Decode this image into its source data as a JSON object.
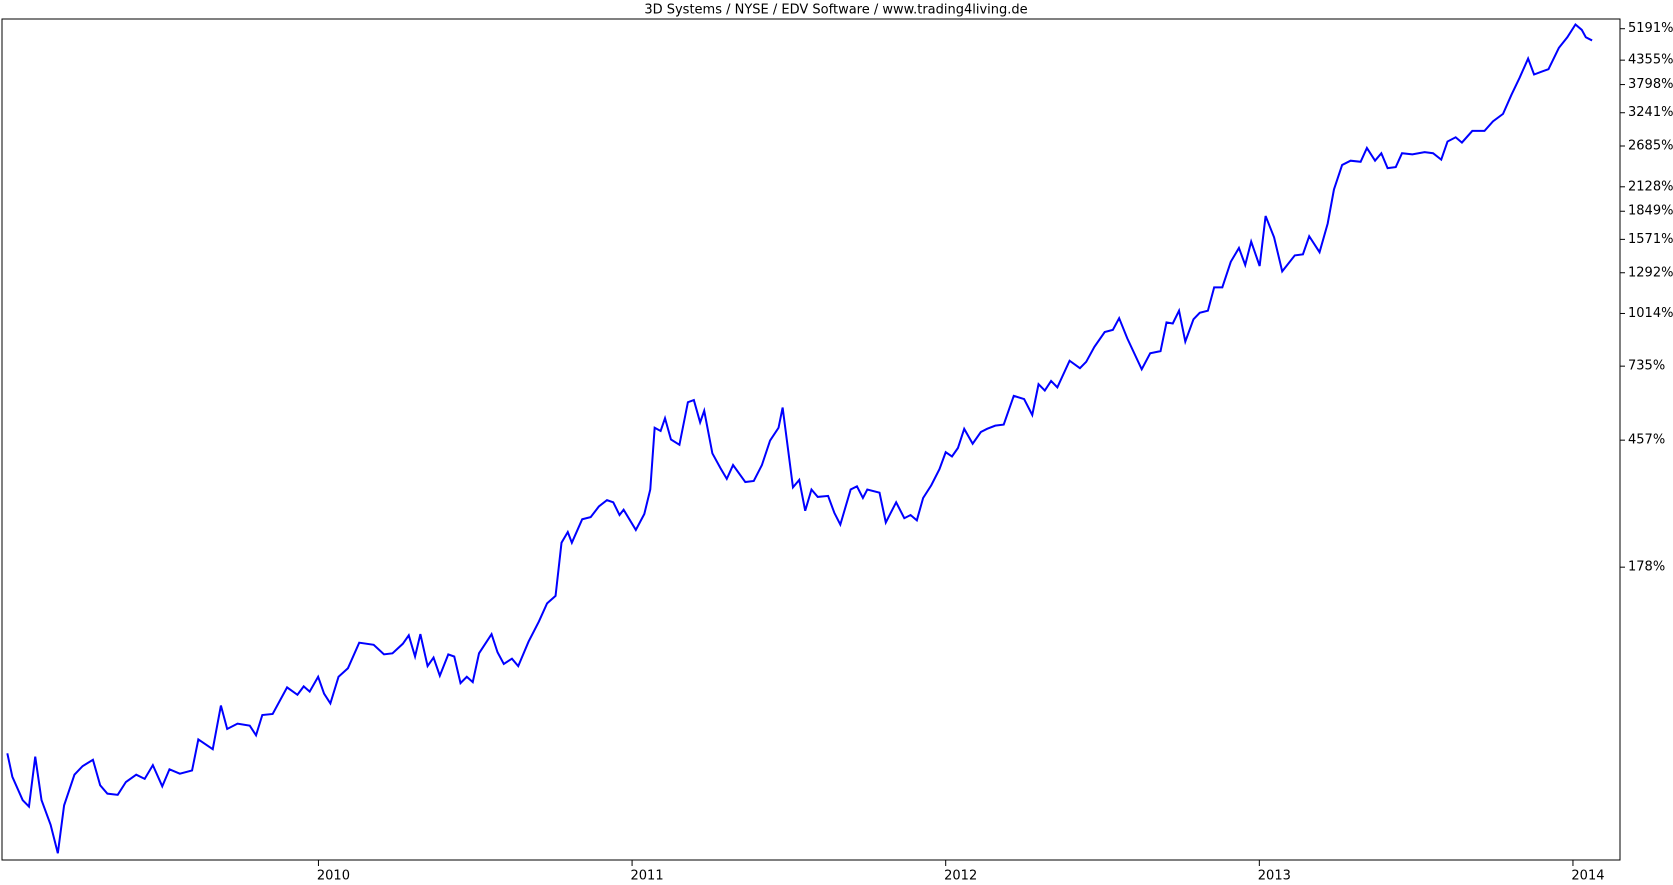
{
  "chart_data": {
    "type": "line",
    "title": "3D Systems / NYSE / EDV Software / www.trading4living.de",
    "color": "#0000ff",
    "yscale": "log",
    "x": [
      2009.008,
      2009.024,
      2009.057,
      2009.077,
      2009.097,
      2009.117,
      2009.146,
      2009.169,
      2009.189,
      2009.222,
      2009.248,
      2009.281,
      2009.304,
      2009.327,
      2009.36,
      2009.386,
      2009.419,
      2009.446,
      2009.472,
      2009.502,
      2009.525,
      2009.558,
      2009.597,
      2009.617,
      2009.663,
      2009.689,
      2009.709,
      2009.742,
      2009.781,
      2009.801,
      2009.821,
      2009.854,
      2009.9,
      2009.933,
      2009.953,
      2009.972,
      2009.999,
      2010.018,
      2010.038,
      2010.064,
      2010.094,
      2010.13,
      2010.176,
      2010.209,
      2010.236,
      2010.269,
      2010.288,
      2010.308,
      2010.325,
      2010.348,
      2010.367,
      2010.387,
      2010.414,
      2010.433,
      2010.453,
      2010.473,
      2010.492,
      2010.512,
      2010.552,
      2010.571,
      2010.591,
      2010.617,
      2010.637,
      2010.67,
      2010.703,
      2010.729,
      2010.756,
      2010.775,
      2010.795,
      2010.808,
      2010.841,
      2010.868,
      2010.894,
      2010.92,
      2010.94,
      2010.96,
      2010.973,
      2011.012,
      2011.039,
      2011.058,
      2011.072,
      2011.091,
      2011.105,
      2011.124,
      2011.151,
      2011.178,
      2011.197,
      2011.217,
      2011.23,
      2011.256,
      2011.282,
      2011.302,
      2011.322,
      2011.361,
      2011.388,
      2011.414,
      2011.44,
      2011.467,
      2011.48,
      2011.513,
      2011.533,
      2011.552,
      2011.572,
      2011.592,
      2011.625,
      2011.645,
      2011.664,
      2011.697,
      2011.717,
      2011.736,
      2011.75,
      2011.789,
      2011.809,
      2011.842,
      2011.868,
      2011.888,
      2011.908,
      2011.928,
      2011.954,
      2011.98,
      2012.0,
      2012.02,
      2012.039,
      2012.059,
      2012.086,
      2012.112,
      2012.132,
      2012.158,
      2012.185,
      2012.217,
      2012.25,
      2012.276,
      2012.296,
      2012.316,
      2012.336,
      2012.356,
      2012.395,
      2012.428,
      2012.448,
      2012.474,
      2012.507,
      2012.533,
      2012.553,
      2012.579,
      2012.625,
      2012.652,
      2012.685,
      2012.704,
      2012.724,
      2012.744,
      2012.764,
      2012.79,
      2012.81,
      2012.836,
      2012.856,
      2012.882,
      2012.909,
      2012.935,
      2012.955,
      2012.974,
      2013.001,
      2013.02,
      2013.047,
      2013.073,
      2013.113,
      2013.139,
      2013.159,
      2013.192,
      2013.218,
      2013.238,
      2013.264,
      2013.291,
      2013.323,
      2013.343,
      2013.369,
      2013.389,
      2013.409,
      2013.435,
      2013.455,
      2013.488,
      2013.527,
      2013.554,
      2013.58,
      2013.6,
      2013.626,
      2013.646,
      2013.679,
      2013.718,
      2013.745,
      2013.777,
      2013.804,
      2013.83,
      2013.857,
      2013.876,
      2013.903,
      2013.922,
      2013.955,
      2013.982,
      2014.008,
      2014.028,
      2014.041,
      2014.061
    ],
    "values": [
      0.4,
      -11.7,
      -22.3,
      -25.0,
      -1.4,
      -22.3,
      -32.1,
      -41.9,
      -24.5,
      -10.7,
      -6.4,
      -3.1,
      -15.7,
      -19.5,
      -20.0,
      -14.2,
      -10.7,
      -12.7,
      -5.9,
      -16.2,
      -8.0,
      -10.2,
      -8.6,
      8.3,
      2.7,
      30.4,
      14.7,
      18.1,
      16.8,
      10.8,
      23.8,
      24.5,
      44.0,
      38.3,
      44.8,
      40.7,
      52.6,
      39.1,
      31.9,
      52.6,
      59.9,
      83.9,
      81.8,
      72.5,
      73.5,
      82.8,
      91.5,
      70.5,
      92.7,
      61.8,
      69.5,
      53.5,
      72.5,
      70.5,
      47.4,
      52.6,
      48.2,
      73.5,
      92.7,
      74.5,
      63.7,
      68.5,
      61.8,
      85.0,
      106.6,
      128.1,
      137.6,
      217.8,
      236.9,
      217.8,
      261.3,
      265.5,
      287.4,
      301.2,
      296.5,
      269.8,
      280.7,
      240.8,
      271.9,
      325.2,
      496.0,
      485.7,
      528.1,
      459.1,
      443.0,
      585.4,
      593.5,
      513.7,
      554.2,
      418.3,
      377.7,
      350.7,
      386.1,
      342.9,
      345.5,
      386.1,
      455.8,
      496.0,
      565.8,
      330.2,
      348.1,
      278.5,
      325.2,
      308.3,
      310.6,
      274.1,
      250.9,
      325.2,
      332.7,
      305.9,
      325.2,
      317.9,
      255.0,
      296.5,
      263.4,
      269.8,
      259.2,
      305.9,
      335.2,
      375.0,
      421.4,
      409.4,
      433.6,
      492.6,
      446.2,
      482.3,
      492.6,
      503.0,
      506.5,
      609.8,
      597.5,
      539.2,
      656.7,
      630.8,
      670.1,
      643.6,
      760.2,
      725.7,
      755.1,
      827.8,
      906.6,
      918.4,
      985.7,
      872.0,
      721.0,
      795.9,
      806.4,
      960.8,
      954.6,
      1030.9,
      855.2,
      979.4,
      1017.9,
      1030.9,
      1185.4,
      1185.4,
      1378.0,
      1494.3,
      1352.4,
      1551.0,
      1344.0,
      1798.7,
      1589.9,
      1302.6,
      1430.6,
      1439.6,
      1599.7,
      1457.6,
      1722.8,
      2096.2,
      2410.7,
      2469.9,
      2455.0,
      2655.9,
      2469.9,
      2576.8,
      2367.4,
      2381.8,
      2576.8,
      2561.1,
      2592.4,
      2576.8,
      2484.8,
      2753.9,
      2821.2,
      2737.4,
      2924.9,
      2924.9,
      3087.5,
      3220.4,
      3587.1,
      3946.8,
      4394.1,
      4018.3,
      4090.9,
      4139.8,
      4663.3,
      4949.0,
      5314.0,
      5158.9,
      4949.0,
      4862.3
    ],
    "xlim": [
      2008.991,
      2014.15
    ],
    "xticks": [
      2010,
      2011,
      2012,
      2013,
      2014
    ],
    "ylim": [
      -44,
      5480
    ],
    "yticks": [
      {
        "value": 5191,
        "label": "5191%"
      },
      {
        "value": 4355,
        "label": "4355%"
      },
      {
        "value": 3798,
        "label": "3798%"
      },
      {
        "value": 3241,
        "label": "3241%"
      },
      {
        "value": 2685,
        "label": "2685%"
      },
      {
        "value": 2128,
        "label": "2128%"
      },
      {
        "value": 1849,
        "label": "1849%"
      },
      {
        "value": 1571,
        "label": "1571%"
      },
      {
        "value": 1292,
        "label": "1292%"
      },
      {
        "value": 1014,
        "label": "1014%"
      },
      {
        "value": 735,
        "label": "735%"
      },
      {
        "value": 457,
        "label": "457%"
      },
      {
        "value": 178,
        "label": "178%"
      }
    ]
  }
}
